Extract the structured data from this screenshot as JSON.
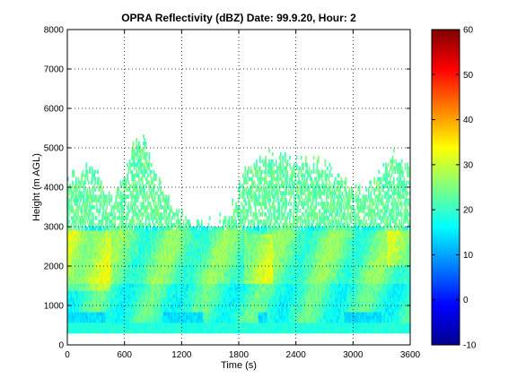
{
  "chart_data": {
    "type": "heatmap",
    "title": "OPRA Reflectivity (dBZ)  Date: 99.9.20, Hour: 2",
    "xlabel": "Time (s)",
    "ylabel": "Height (m AGL)",
    "xlim": [
      0,
      3600
    ],
    "ylim": [
      0,
      8000
    ],
    "x_ticks": [
      "0",
      "600",
      "1200",
      "1800",
      "2400",
      "3000",
      "3600"
    ],
    "y_ticks": [
      "0",
      "1000",
      "2000",
      "3000",
      "4000",
      "5000",
      "6000",
      "7000",
      "8000"
    ],
    "grid": true,
    "colorbar": {
      "colormap": "jet",
      "clim": [
        -10,
        60
      ],
      "ticks": [
        "-10",
        "0",
        "10",
        "20",
        "30",
        "40",
        "50",
        "60"
      ]
    },
    "approx_description_data": {
      "layer_bottom_m": 300,
      "layer_top_m": 3000,
      "sparse_echo_top_m_by_time": [
        {
          "time": 0,
          "top": 4100
        },
        {
          "time": 150,
          "top": 4400
        },
        {
          "time": 300,
          "top": 4300
        },
        {
          "time": 500,
          "top": 3600
        },
        {
          "time": 650,
          "top": 4800
        },
        {
          "time": 780,
          "top": 5200
        },
        {
          "time": 900,
          "top": 4300
        },
        {
          "time": 1050,
          "top": 3700
        },
        {
          "time": 1200,
          "top": 3200
        },
        {
          "time": 1500,
          "top": 3000
        },
        {
          "time": 1700,
          "top": 3200
        },
        {
          "time": 1850,
          "top": 4300
        },
        {
          "time": 2100,
          "top": 4800
        },
        {
          "time": 2400,
          "top": 4500
        },
        {
          "time": 2600,
          "top": 4600
        },
        {
          "time": 2800,
          "top": 4300
        },
        {
          "time": 3100,
          "top": 3800
        },
        {
          "time": 3300,
          "top": 4300
        },
        {
          "time": 3450,
          "top": 4900
        },
        {
          "time": 3600,
          "top": 4200
        }
      ]
    }
  }
}
